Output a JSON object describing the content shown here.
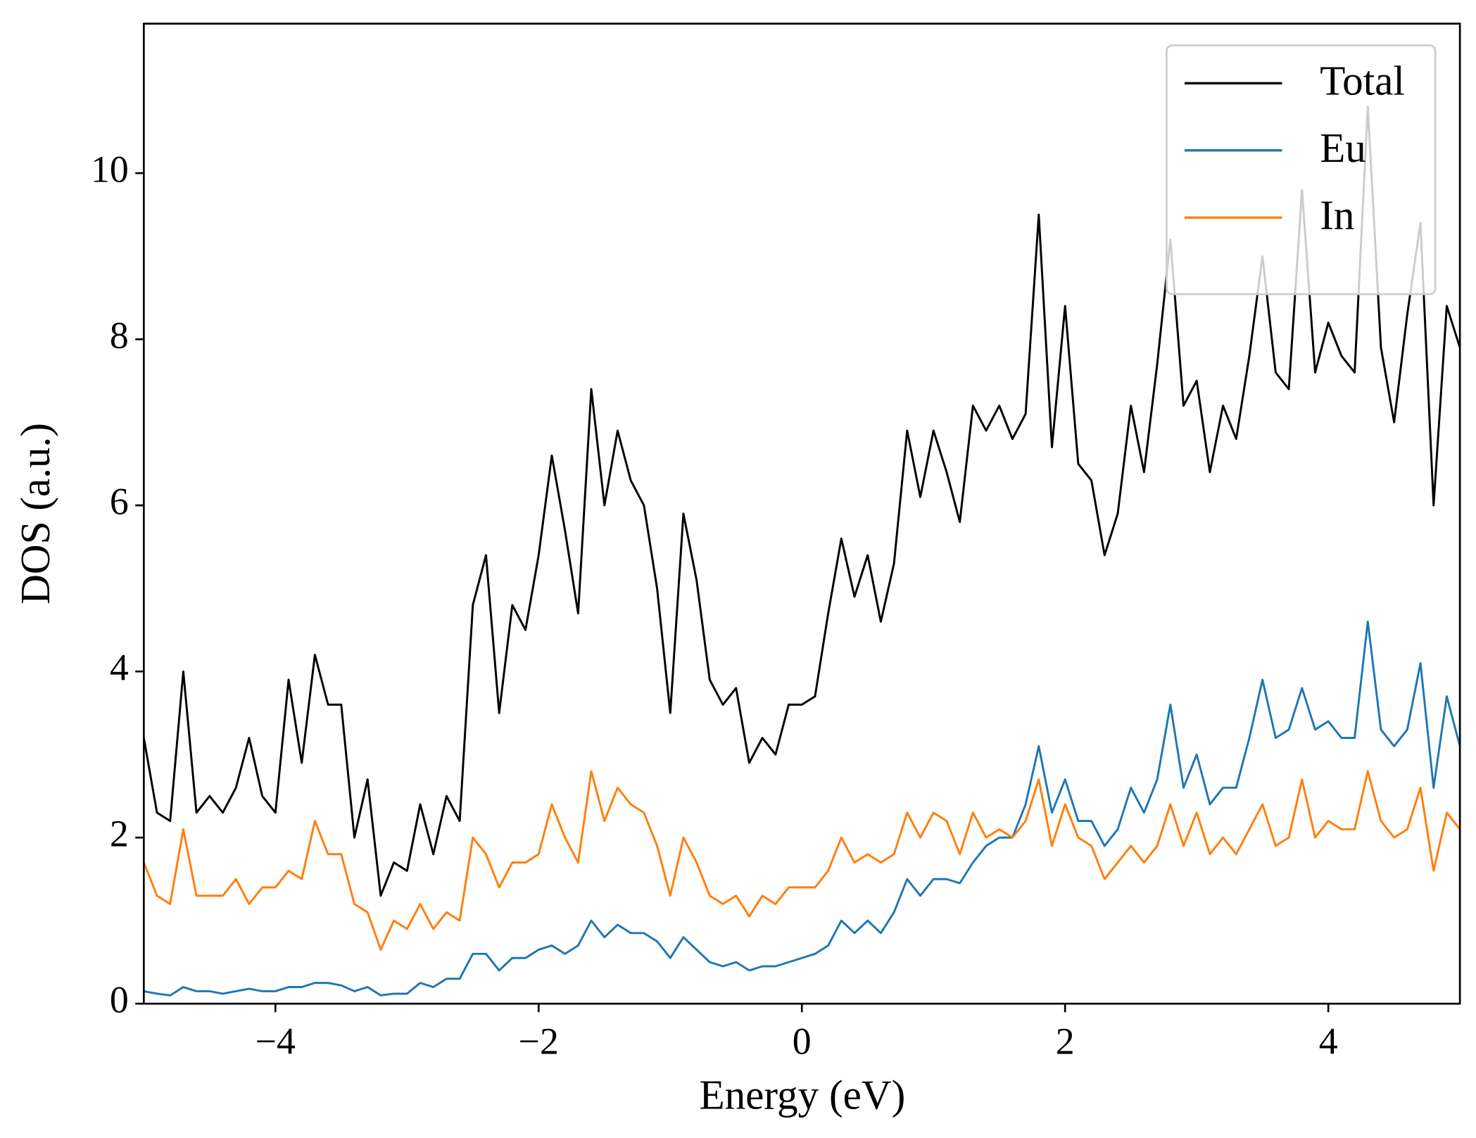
{
  "chart_data": {
    "type": "line",
    "xlabel": "Energy (eV)",
    "ylabel": "DOS (a.u.)",
    "x": [
      -5,
      -4.9,
      -4.8,
      -4.7,
      -4.6,
      -4.5,
      -4.4,
      -4.3,
      -4.2,
      -4.1,
      -4,
      -3.9,
      -3.8,
      -3.7,
      -3.6,
      -3.5,
      -3.4,
      -3.3,
      -3.2,
      -3.1,
      -3,
      -2.9,
      -2.8,
      -2.7,
      -2.6,
      -2.5,
      -2.4,
      -2.3,
      -2.2,
      -2.1,
      -2,
      -1.9,
      -1.8,
      -1.7,
      -1.6,
      -1.5,
      -1.4,
      -1.3,
      -1.2,
      -1.1,
      -1,
      -0.9,
      -0.8,
      -0.7,
      -0.6,
      -0.5,
      -0.4,
      -0.3,
      -0.2,
      -0.1,
      0,
      0.1,
      0.2,
      0.3,
      0.4,
      0.5,
      0.6,
      0.7,
      0.8,
      0.9,
      1,
      1.1,
      1.2,
      1.3,
      1.4,
      1.5,
      1.6,
      1.7,
      1.8,
      1.9,
      2,
      2.1,
      2.2,
      2.3,
      2.4,
      2.5,
      2.6,
      2.7,
      2.8,
      2.9,
      3,
      3.1,
      3.2,
      3.3,
      3.4,
      3.5,
      3.6,
      3.7,
      3.8,
      3.9,
      4,
      4.1,
      4.2,
      4.3,
      4.4,
      4.5,
      4.6,
      4.7,
      4.8,
      4.9,
      5
    ],
    "series": [
      {
        "name": "Total",
        "color": "#000000",
        "values": [
          3.2,
          2.3,
          2.2,
          4.0,
          2.3,
          2.5,
          2.3,
          2.6,
          3.2,
          2.5,
          2.3,
          3.9,
          2.9,
          4.2,
          3.6,
          3.6,
          2.0,
          2.7,
          1.3,
          1.7,
          1.6,
          2.4,
          1.8,
          2.5,
          2.2,
          4.8,
          5.4,
          3.5,
          4.8,
          4.5,
          5.4,
          6.6,
          5.7,
          4.7,
          7.4,
          6.0,
          6.9,
          6.3,
          6.0,
          5.0,
          3.5,
          5.9,
          5.1,
          3.9,
          3.6,
          3.8,
          2.9,
          3.2,
          3.0,
          3.6,
          3.6,
          3.7,
          4.7,
          5.6,
          4.9,
          5.4,
          4.6,
          5.3,
          6.9,
          6.1,
          6.9,
          6.4,
          5.8,
          7.2,
          6.9,
          7.2,
          6.8,
          7.1,
          9.5,
          6.7,
          8.4,
          6.5,
          6.3,
          5.4,
          5.9,
          7.2,
          6.4,
          7.7,
          9.2,
          7.2,
          7.5,
          6.4,
          7.2,
          6.8,
          7.8,
          9.0,
          7.6,
          7.4,
          9.8,
          7.6,
          8.2,
          7.8,
          7.6,
          10.8,
          7.9,
          7.0,
          8.3,
          9.4,
          6.0,
          8.4,
          7.9
        ]
      },
      {
        "name": "Eu",
        "color": "#1f77b4",
        "values": [
          0.15,
          0.12,
          0.1,
          0.2,
          0.15,
          0.15,
          0.12,
          0.15,
          0.18,
          0.15,
          0.15,
          0.2,
          0.2,
          0.25,
          0.25,
          0.22,
          0.15,
          0.2,
          0.1,
          0.12,
          0.12,
          0.25,
          0.2,
          0.3,
          0.3,
          0.6,
          0.6,
          0.4,
          0.55,
          0.55,
          0.65,
          0.7,
          0.6,
          0.7,
          1.0,
          0.8,
          0.95,
          0.85,
          0.85,
          0.75,
          0.55,
          0.8,
          0.65,
          0.5,
          0.45,
          0.5,
          0.4,
          0.45,
          0.45,
          0.5,
          0.55,
          0.6,
          0.7,
          1.0,
          0.85,
          1.0,
          0.85,
          1.1,
          1.5,
          1.3,
          1.5,
          1.5,
          1.45,
          1.7,
          1.9,
          2.0,
          2.0,
          2.4,
          3.1,
          2.3,
          2.7,
          2.2,
          2.2,
          1.9,
          2.1,
          2.6,
          2.3,
          2.7,
          3.6,
          2.6,
          3.0,
          2.4,
          2.6,
          2.6,
          3.2,
          3.9,
          3.2,
          3.3,
          3.8,
          3.3,
          3.4,
          3.2,
          3.2,
          4.6,
          3.3,
          3.1,
          3.3,
          4.1,
          2.6,
          3.7,
          3.1
        ]
      },
      {
        "name": "In",
        "color": "#ff7f0e",
        "values": [
          1.7,
          1.3,
          1.2,
          2.1,
          1.3,
          1.3,
          1.3,
          1.5,
          1.2,
          1.4,
          1.4,
          1.6,
          1.5,
          2.2,
          1.8,
          1.8,
          1.2,
          1.1,
          0.65,
          1.0,
          0.9,
          1.2,
          0.9,
          1.1,
          1.0,
          2.0,
          1.8,
          1.4,
          1.7,
          1.7,
          1.8,
          2.4,
          2.0,
          1.7,
          2.8,
          2.2,
          2.6,
          2.4,
          2.3,
          1.9,
          1.3,
          2.0,
          1.7,
          1.3,
          1.2,
          1.3,
          1.05,
          1.3,
          1.2,
          1.4,
          1.4,
          1.4,
          1.6,
          2.0,
          1.7,
          1.8,
          1.7,
          1.8,
          2.3,
          2.0,
          2.3,
          2.2,
          1.8,
          2.3,
          2.0,
          2.1,
          2.0,
          2.2,
          2.7,
          1.9,
          2.4,
          2.0,
          1.9,
          1.5,
          1.7,
          1.9,
          1.7,
          1.9,
          2.4,
          1.9,
          2.3,
          1.8,
          2.0,
          1.8,
          2.1,
          2.4,
          1.9,
          2.0,
          2.7,
          2.0,
          2.2,
          2.1,
          2.1,
          2.8,
          2.2,
          2.0,
          2.1,
          2.6,
          1.6,
          2.3,
          2.1
        ]
      }
    ],
    "xlim": [
      -5,
      5
    ],
    "ylim": [
      0,
      11.8
    ],
    "xticks": [
      {
        "value": -4,
        "label": "−4"
      },
      {
        "value": -2,
        "label": "−2"
      },
      0,
      2,
      4
    ],
    "yticks": [
      0,
      2,
      4,
      6,
      8,
      10
    ],
    "grid": false,
    "legend": "upper right"
  }
}
